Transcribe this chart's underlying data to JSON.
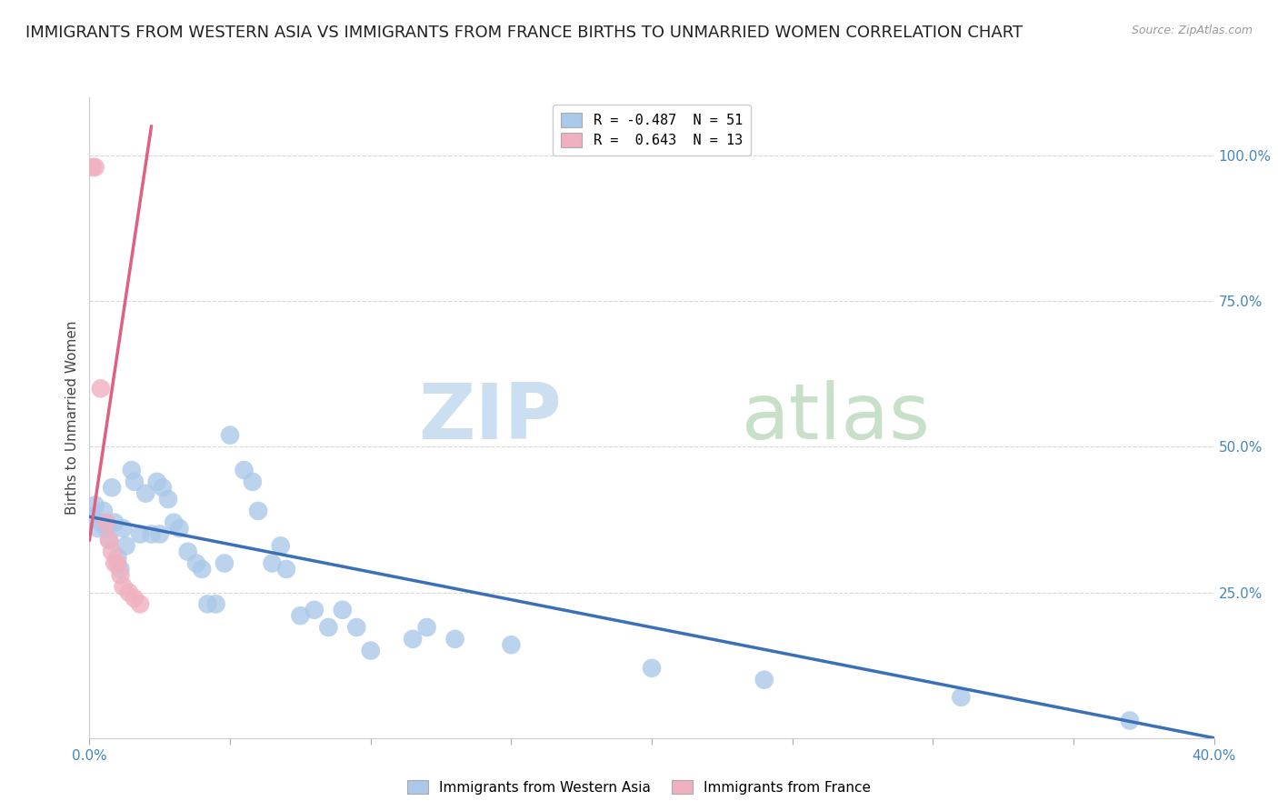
{
  "title": "IMMIGRANTS FROM WESTERN ASIA VS IMMIGRANTS FROM FRANCE BIRTHS TO UNMARRIED WOMEN CORRELATION CHART",
  "source": "Source: ZipAtlas.com",
  "ylabel": "Births to Unmarried Women",
  "legend_blue": "R = -0.487  N = 51",
  "legend_pink": "R =  0.643  N = 13",
  "legend_label_blue": "Immigrants from Western Asia",
  "legend_label_pink": "Immigrants from France",
  "blue_color": "#aac8e8",
  "pink_color": "#f0b0c0",
  "line_blue": "#3a70b8",
  "line_pink": "#e06080",
  "blue_scatter": [
    [
      0.001,
      0.38
    ],
    [
      0.002,
      0.4
    ],
    [
      0.003,
      0.36
    ],
    [
      0.004,
      0.37
    ],
    [
      0.005,
      0.39
    ],
    [
      0.006,
      0.36
    ],
    [
      0.007,
      0.34
    ],
    [
      0.008,
      0.43
    ],
    [
      0.009,
      0.37
    ],
    [
      0.01,
      0.31
    ],
    [
      0.011,
      0.29
    ],
    [
      0.012,
      0.36
    ],
    [
      0.013,
      0.33
    ],
    [
      0.015,
      0.46
    ],
    [
      0.016,
      0.44
    ],
    [
      0.018,
      0.35
    ],
    [
      0.02,
      0.42
    ],
    [
      0.022,
      0.35
    ],
    [
      0.024,
      0.44
    ],
    [
      0.025,
      0.35
    ],
    [
      0.026,
      0.43
    ],
    [
      0.028,
      0.41
    ],
    [
      0.03,
      0.37
    ],
    [
      0.032,
      0.36
    ],
    [
      0.035,
      0.32
    ],
    [
      0.038,
      0.3
    ],
    [
      0.04,
      0.29
    ],
    [
      0.042,
      0.23
    ],
    [
      0.045,
      0.23
    ],
    [
      0.048,
      0.3
    ],
    [
      0.05,
      0.52
    ],
    [
      0.055,
      0.46
    ],
    [
      0.058,
      0.44
    ],
    [
      0.06,
      0.39
    ],
    [
      0.065,
      0.3
    ],
    [
      0.068,
      0.33
    ],
    [
      0.07,
      0.29
    ],
    [
      0.075,
      0.21
    ],
    [
      0.08,
      0.22
    ],
    [
      0.085,
      0.19
    ],
    [
      0.09,
      0.22
    ],
    [
      0.095,
      0.19
    ],
    [
      0.1,
      0.15
    ],
    [
      0.115,
      0.17
    ],
    [
      0.12,
      0.19
    ],
    [
      0.13,
      0.17
    ],
    [
      0.15,
      0.16
    ],
    [
      0.2,
      0.12
    ],
    [
      0.24,
      0.1
    ],
    [
      0.31,
      0.07
    ],
    [
      0.37,
      0.03
    ]
  ],
  "pink_scatter": [
    [
      0.001,
      0.98
    ],
    [
      0.002,
      0.98
    ],
    [
      0.004,
      0.6
    ],
    [
      0.006,
      0.37
    ],
    [
      0.007,
      0.34
    ],
    [
      0.008,
      0.32
    ],
    [
      0.009,
      0.3
    ],
    [
      0.01,
      0.3
    ],
    [
      0.011,
      0.28
    ],
    [
      0.012,
      0.26
    ],
    [
      0.014,
      0.25
    ],
    [
      0.016,
      0.24
    ],
    [
      0.018,
      0.23
    ]
  ],
  "xlim": [
    0.0,
    0.4
  ],
  "ylim": [
    0.0,
    1.1
  ],
  "xticks": [
    0.0,
    0.05,
    0.1,
    0.15,
    0.2,
    0.25,
    0.3,
    0.35,
    0.4
  ],
  "yticks_right": [
    1.0,
    0.75,
    0.5,
    0.25
  ],
  "ytick_right_labels": [
    "100.0%",
    "75.0%",
    "50.0%",
    "25.0%"
  ],
  "grid_color": "#d8d8d8",
  "background_color": "#ffffff",
  "title_fontsize": 13,
  "axis_fontsize": 11
}
